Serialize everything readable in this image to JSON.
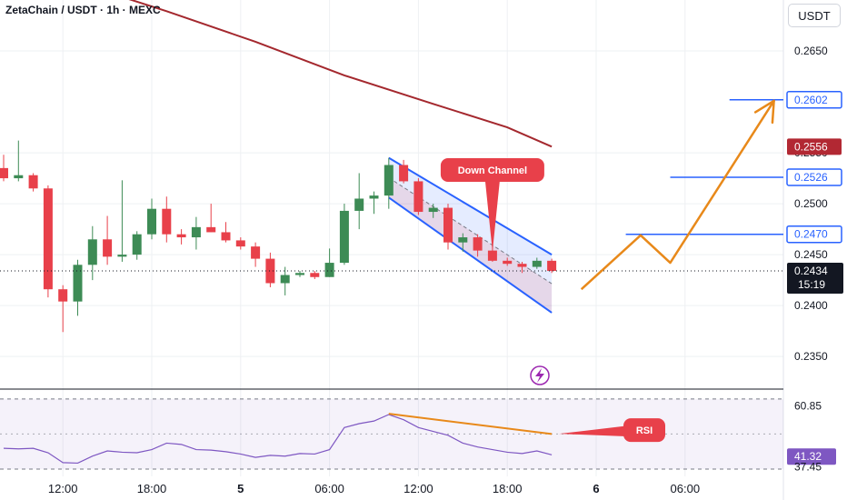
{
  "header": {
    "title": "ZetaChain / USDT · 1h · MEXC",
    "currency_button": "USDT"
  },
  "colors": {
    "up": "#3d8b55",
    "down": "#e8404a",
    "ma": "#a4282e",
    "channel": "#2962ff",
    "arrow": "#e8891a",
    "rsi_line": "#7e57c2",
    "callout": "#e8404a"
  },
  "annotations": {
    "down_channel_label": "Down Channel",
    "rsi_label": "RSI",
    "lightning_icon": "lightning-icon"
  },
  "chart_data": {
    "type": "candlestick",
    "price_axis": {
      "ticks": [
        "0.2650",
        "0.2550",
        "0.2500",
        "0.2450",
        "0.2400",
        "0.2350"
      ],
      "tick_values": [
        0.265,
        0.255,
        0.25,
        0.245,
        0.24,
        0.235
      ],
      "range": [
        0.2318,
        0.27
      ]
    },
    "price_labels": [
      {
        "text": "0.2602",
        "value": 0.2602,
        "style": "blue-outline"
      },
      {
        "text": "0.2556",
        "value": 0.2556,
        "style": "red"
      },
      {
        "text": "0.2526",
        "value": 0.2526,
        "style": "blue-outline"
      },
      {
        "text": "0.2470",
        "value": 0.247,
        "style": "blue-outline"
      },
      {
        "text": "0.2434",
        "value": 0.2434,
        "style": "black",
        "sub": "15:19"
      }
    ],
    "time_axis": {
      "labels": [
        "12:00",
        "18:00",
        "5",
        "06:00",
        "12:00",
        "18:00",
        "6",
        "06:00"
      ],
      "label_bar_index": [
        4,
        10,
        16,
        22,
        28,
        34,
        40,
        46
      ],
      "bold": [
        "5",
        "6"
      ]
    },
    "candles": [
      {
        "o": 0.2535,
        "h": 0.2548,
        "l": 0.2522,
        "c": 0.2525
      },
      {
        "o": 0.2525,
        "h": 0.2562,
        "l": 0.2522,
        "c": 0.2528
      },
      {
        "o": 0.2528,
        "h": 0.253,
        "l": 0.2512,
        "c": 0.2515
      },
      {
        "o": 0.2515,
        "h": 0.2518,
        "l": 0.2408,
        "c": 0.2416
      },
      {
        "o": 0.2416,
        "h": 0.242,
        "l": 0.2374,
        "c": 0.2404
      },
      {
        "o": 0.2404,
        "h": 0.2445,
        "l": 0.239,
        "c": 0.244
      },
      {
        "o": 0.244,
        "h": 0.2478,
        "l": 0.2425,
        "c": 0.2465
      },
      {
        "o": 0.2465,
        "h": 0.2488,
        "l": 0.244,
        "c": 0.2448
      },
      {
        "o": 0.2448,
        "h": 0.2523,
        "l": 0.2443,
        "c": 0.245
      },
      {
        "o": 0.245,
        "h": 0.2473,
        "l": 0.2445,
        "c": 0.247
      },
      {
        "o": 0.247,
        "h": 0.2505,
        "l": 0.2465,
        "c": 0.2495
      },
      {
        "o": 0.2495,
        "h": 0.2507,
        "l": 0.2462,
        "c": 0.247
      },
      {
        "o": 0.247,
        "h": 0.2475,
        "l": 0.246,
        "c": 0.2467
      },
      {
        "o": 0.2467,
        "h": 0.2487,
        "l": 0.2455,
        "c": 0.2477
      },
      {
        "o": 0.2477,
        "h": 0.25,
        "l": 0.2472,
        "c": 0.2472
      },
      {
        "o": 0.2472,
        "h": 0.2482,
        "l": 0.2462,
        "c": 0.2464
      },
      {
        "o": 0.2464,
        "h": 0.2467,
        "l": 0.2455,
        "c": 0.2458
      },
      {
        "o": 0.2458,
        "h": 0.2462,
        "l": 0.2438,
        "c": 0.2446
      },
      {
        "o": 0.2446,
        "h": 0.2452,
        "l": 0.2418,
        "c": 0.2422
      },
      {
        "o": 0.2422,
        "h": 0.2438,
        "l": 0.241,
        "c": 0.243
      },
      {
        "o": 0.243,
        "h": 0.2434,
        "l": 0.2428,
        "c": 0.2432
      },
      {
        "o": 0.2432,
        "h": 0.2434,
        "l": 0.2426,
        "c": 0.2428
      },
      {
        "o": 0.2428,
        "h": 0.2456,
        "l": 0.2428,
        "c": 0.2442
      },
      {
        "o": 0.2442,
        "h": 0.25,
        "l": 0.244,
        "c": 0.2493
      },
      {
        "o": 0.2493,
        "h": 0.253,
        "l": 0.2475,
        "c": 0.2505
      },
      {
        "o": 0.2505,
        "h": 0.2512,
        "l": 0.249,
        "c": 0.2508
      },
      {
        "o": 0.2508,
        "h": 0.2545,
        "l": 0.2495,
        "c": 0.2538
      },
      {
        "o": 0.2538,
        "h": 0.2543,
        "l": 0.252,
        "c": 0.2522
      },
      {
        "o": 0.2522,
        "h": 0.2525,
        "l": 0.2489,
        "c": 0.2492
      },
      {
        "o": 0.2492,
        "h": 0.25,
        "l": 0.2486,
        "c": 0.2496
      },
      {
        "o": 0.2496,
        "h": 0.25,
        "l": 0.2455,
        "c": 0.2462
      },
      {
        "o": 0.2462,
        "h": 0.2471,
        "l": 0.2453,
        "c": 0.2467
      },
      {
        "o": 0.2467,
        "h": 0.247,
        "l": 0.2448,
        "c": 0.2454
      },
      {
        "o": 0.2454,
        "h": 0.2462,
        "l": 0.2443,
        "c": 0.2444
      },
      {
        "o": 0.2444,
        "h": 0.2447,
        "l": 0.2439,
        "c": 0.2441
      },
      {
        "o": 0.2441,
        "h": 0.2443,
        "l": 0.2432,
        "c": 0.2438
      },
      {
        "o": 0.2438,
        "h": 0.2447,
        "l": 0.2436,
        "c": 0.2444
      },
      {
        "o": 0.2444,
        "h": 0.2446,
        "l": 0.2432,
        "c": 0.2434
      }
    ],
    "moving_average": [
      {
        "bar": -1,
        "value": 0.2742
      },
      {
        "bar": 5,
        "value": 0.2717
      },
      {
        "bar": 11,
        "value": 0.2689
      },
      {
        "bar": 17,
        "value": 0.2659
      },
      {
        "bar": 23,
        "value": 0.2626
      },
      {
        "bar": 29,
        "value": 0.2598
      },
      {
        "bar": 34,
        "value": 0.2575
      },
      {
        "bar": 37,
        "value": 0.2556
      }
    ],
    "down_channel": {
      "upper": [
        {
          "bar": 26,
          "value": 0.2545
        },
        {
          "bar": 37,
          "value": 0.245
        }
      ],
      "lower": [
        {
          "bar": 26,
          "value": 0.2506
        },
        {
          "bar": 37,
          "value": 0.2393
        }
      ]
    },
    "horizontal_levels": [
      {
        "from_bar": 49,
        "to_bar": 53,
        "value": 0.2602
      },
      {
        "from_bar": 45,
        "to_bar": 53,
        "value": 0.2526
      },
      {
        "from_bar": 42,
        "to_bar": 53,
        "value": 0.247
      }
    ],
    "projection_path": [
      {
        "bar": 39,
        "value": 0.2416
      },
      {
        "bar": 43,
        "value": 0.2469
      },
      {
        "bar": 45,
        "value": 0.2442
      },
      {
        "bar": 52,
        "value": 0.2601
      }
    ],
    "rsi": {
      "ticks": [
        "60.85",
        "41.32",
        "37.45"
      ],
      "tick_values": [
        60.85,
        41.32,
        37.45
      ],
      "range": [
        36.5,
        64.5
      ],
      "upper_band": 63.5,
      "lower_band": 36.5,
      "values": [
        44.5,
        44.3,
        44.5,
        42.8,
        39.0,
        38.8,
        41.5,
        43.5,
        43.0,
        42.8,
        44.0,
        46.5,
        46.0,
        44.0,
        43.8,
        43.2,
        42.3,
        41.0,
        41.8,
        41.5,
        42.5,
        42.3,
        44.0,
        52.5,
        54.0,
        55.0,
        57.5,
        55.5,
        52.5,
        51.0,
        49.5,
        46.5,
        45.0,
        44.0,
        43.0,
        42.5,
        43.5,
        42.0
      ],
      "divergence": [
        {
          "bar": 26,
          "value": 57.8
        },
        {
          "bar": 37,
          "value": 50.0
        }
      ],
      "callout_value": 51.5
    }
  }
}
